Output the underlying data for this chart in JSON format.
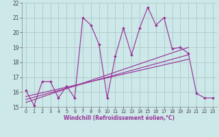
{
  "xlabel": "Windchill (Refroidissement éolien,°C)",
  "xlim": [
    -0.5,
    23.5
  ],
  "ylim": [
    15,
    22
  ],
  "xticks": [
    0,
    1,
    2,
    3,
    4,
    5,
    6,
    7,
    8,
    9,
    10,
    11,
    12,
    13,
    14,
    15,
    16,
    17,
    18,
    19,
    20,
    21,
    22,
    23
  ],
  "yticks": [
    15,
    16,
    17,
    18,
    19,
    20,
    21,
    22
  ],
  "main_x": [
    0,
    1,
    2,
    3,
    4,
    5,
    6,
    7,
    8,
    9,
    10,
    11,
    12,
    13,
    14,
    15,
    16,
    17,
    18,
    19,
    20,
    21,
    22,
    23
  ],
  "main_y": [
    16.1,
    15.1,
    16.7,
    16.7,
    15.6,
    16.4,
    15.6,
    21.0,
    20.5,
    19.2,
    15.6,
    18.4,
    20.3,
    18.5,
    20.3,
    21.7,
    20.5,
    21.0,
    18.9,
    19.0,
    18.6,
    15.9,
    15.6,
    15.6
  ],
  "trend1_x": [
    0,
    20
  ],
  "trend1_y": [
    15.3,
    19.0
  ],
  "trend2_x": [
    0,
    20
  ],
  "trend2_y": [
    15.5,
    18.5
  ],
  "trend3_x": [
    0,
    20
  ],
  "trend3_y": [
    15.7,
    18.2
  ],
  "line_color": "#993399",
  "bg_color": "#cce8e8",
  "grid_color": "#b0c8c8"
}
